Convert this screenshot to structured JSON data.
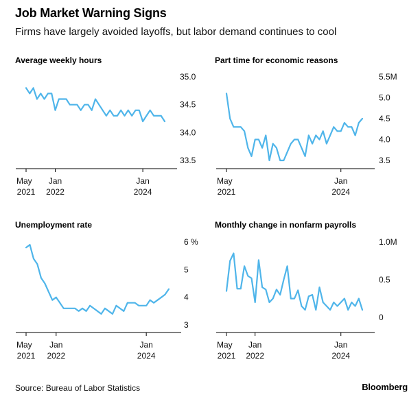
{
  "header": {
    "title": "Job Market Warning Signs",
    "subtitle": "Firms have largely avoided layoffs, but labor demand continues to cool"
  },
  "footer": {
    "source": "Source: Bureau of Labor Statistics",
    "brand": "Bloomberg"
  },
  "colors": {
    "line": "#4fb5ea",
    "axis": "#000000",
    "text": "#111111"
  },
  "chart_data": [
    {
      "type": "line",
      "title": "Average weekly hours",
      "x": [
        "2021-05",
        "2021-06",
        "2021-07",
        "2021-08",
        "2021-09",
        "2021-10",
        "2021-11",
        "2021-12",
        "2022-01",
        "2022-02",
        "2022-03",
        "2022-04",
        "2022-05",
        "2022-06",
        "2022-07",
        "2022-08",
        "2022-09",
        "2022-10",
        "2022-11",
        "2022-12",
        "2023-01",
        "2023-02",
        "2023-03",
        "2023-04",
        "2023-05",
        "2023-06",
        "2023-07",
        "2023-08",
        "2023-09",
        "2023-10",
        "2023-11",
        "2023-12",
        "2024-01",
        "2024-02",
        "2024-03",
        "2024-04",
        "2024-05",
        "2024-06",
        "2024-07"
      ],
      "values": [
        34.8,
        34.7,
        34.8,
        34.6,
        34.7,
        34.6,
        34.7,
        34.7,
        34.4,
        34.6,
        34.6,
        34.6,
        34.5,
        34.5,
        34.5,
        34.4,
        34.5,
        34.5,
        34.4,
        34.6,
        34.5,
        34.4,
        34.3,
        34.4,
        34.3,
        34.3,
        34.4,
        34.3,
        34.4,
        34.3,
        34.4,
        34.4,
        34.2,
        34.3,
        34.4,
        34.3,
        34.3,
        34.3,
        34.2
      ],
      "ylim": [
        33.5,
        35.0
      ],
      "y_ticks": [
        33.5,
        34.0,
        34.5,
        35.0
      ],
      "y_tick_labels": [
        "33.5",
        "34.0",
        "34.5",
        "35.0"
      ],
      "x_tick_labels": [
        {
          "x": "2021-05",
          "lines": [
            "May",
            "2021"
          ]
        },
        {
          "x": "2022-01",
          "lines": [
            "Jan",
            "2022"
          ]
        },
        {
          "x": "2024-01",
          "lines": [
            "Jan",
            "2024"
          ]
        }
      ]
    },
    {
      "type": "line",
      "title": "Part time for economic reasons",
      "x": [
        "2021-05",
        "2021-06",
        "2021-07",
        "2021-08",
        "2021-09",
        "2021-10",
        "2021-11",
        "2021-12",
        "2022-01",
        "2022-02",
        "2022-03",
        "2022-04",
        "2022-05",
        "2022-06",
        "2022-07",
        "2022-08",
        "2022-09",
        "2022-10",
        "2022-11",
        "2022-12",
        "2023-01",
        "2023-02",
        "2023-03",
        "2023-04",
        "2023-05",
        "2023-06",
        "2023-07",
        "2023-08",
        "2023-09",
        "2023-10",
        "2023-11",
        "2023-12",
        "2024-01",
        "2024-02",
        "2024-03",
        "2024-04",
        "2024-05",
        "2024-06",
        "2024-07"
      ],
      "values": [
        5.1,
        4.5,
        4.3,
        4.3,
        4.3,
        4.2,
        3.8,
        3.6,
        4.0,
        4.0,
        3.8,
        4.1,
        3.5,
        3.9,
        3.8,
        3.5,
        3.5,
        3.7,
        3.9,
        4.0,
        4.0,
        3.8,
        3.6,
        4.1,
        3.9,
        4.1,
        4.0,
        4.2,
        3.9,
        4.1,
        4.3,
        4.2,
        4.2,
        4.4,
        4.3,
        4.3,
        4.1,
        4.4,
        4.5
      ],
      "ylim": [
        3.5,
        5.5
      ],
      "y_ticks": [
        3.5,
        4.0,
        4.5,
        5.0,
        5.5
      ],
      "y_tick_labels": [
        "3.5",
        "4.0",
        "4.5",
        "5.0",
        "5.5M"
      ],
      "x_tick_labels": [
        {
          "x": "2021-05",
          "lines": [
            "May",
            "2021"
          ]
        },
        {
          "x": "2024-01",
          "lines": [
            "Jan",
            "2024"
          ]
        }
      ]
    },
    {
      "type": "line",
      "title": "Unemployment rate",
      "x": [
        "2021-05",
        "2021-06",
        "2021-07",
        "2021-08",
        "2021-09",
        "2021-10",
        "2021-11",
        "2021-12",
        "2022-01",
        "2022-02",
        "2022-03",
        "2022-04",
        "2022-05",
        "2022-06",
        "2022-07",
        "2022-08",
        "2022-09",
        "2022-10",
        "2022-11",
        "2022-12",
        "2023-01",
        "2023-02",
        "2023-03",
        "2023-04",
        "2023-05",
        "2023-06",
        "2023-07",
        "2023-08",
        "2023-09",
        "2023-10",
        "2023-11",
        "2023-12",
        "2024-01",
        "2024-02",
        "2024-03",
        "2024-04",
        "2024-05",
        "2024-06",
        "2024-07"
      ],
      "values": [
        5.8,
        5.9,
        5.4,
        5.2,
        4.7,
        4.5,
        4.2,
        3.9,
        4.0,
        3.8,
        3.6,
        3.6,
        3.6,
        3.6,
        3.5,
        3.6,
        3.5,
        3.7,
        3.6,
        3.5,
        3.4,
        3.6,
        3.5,
        3.4,
        3.7,
        3.6,
        3.5,
        3.8,
        3.8,
        3.8,
        3.7,
        3.7,
        3.7,
        3.9,
        3.8,
        3.9,
        4.0,
        4.1,
        4.3
      ],
      "ylim": [
        3,
        6
      ],
      "y_ticks": [
        3,
        4,
        5,
        6
      ],
      "y_tick_labels": [
        "3",
        "4",
        "5",
        "6 %"
      ],
      "x_tick_labels": [
        {
          "x": "2021-05",
          "lines": [
            "May",
            "2021"
          ]
        },
        {
          "x": "2022-01",
          "lines": [
            "Jan",
            "2022"
          ]
        },
        {
          "x": "2024-01",
          "lines": [
            "Jan",
            "2024"
          ]
        }
      ]
    },
    {
      "type": "line",
      "title": "Monthly change in nonfarm payrolls",
      "x": [
        "2021-05",
        "2021-06",
        "2021-07",
        "2021-08",
        "2021-09",
        "2021-10",
        "2021-11",
        "2021-12",
        "2022-01",
        "2022-02",
        "2022-03",
        "2022-04",
        "2022-05",
        "2022-06",
        "2022-07",
        "2022-08",
        "2022-09",
        "2022-10",
        "2022-11",
        "2022-12",
        "2023-01",
        "2023-02",
        "2023-03",
        "2023-04",
        "2023-05",
        "2023-06",
        "2023-07",
        "2023-08",
        "2023-09",
        "2023-10",
        "2023-11",
        "2023-12",
        "2024-01",
        "2024-02",
        "2024-03",
        "2024-04",
        "2024-05",
        "2024-06",
        "2024-07"
      ],
      "values": [
        0.35,
        0.75,
        0.85,
        0.38,
        0.38,
        0.68,
        0.55,
        0.52,
        0.2,
        0.76,
        0.4,
        0.37,
        0.2,
        0.25,
        0.37,
        0.3,
        0.5,
        0.68,
        0.25,
        0.25,
        0.36,
        0.15,
        0.1,
        0.28,
        0.3,
        0.1,
        0.4,
        0.2,
        0.15,
        0.1,
        0.2,
        0.15,
        0.2,
        0.25,
        0.1,
        0.2,
        0.15,
        0.25,
        0.1
      ],
      "ylim": [
        -0.1,
        1.0
      ],
      "y_ticks": [
        0,
        0.5,
        1.0
      ],
      "y_tick_labels": [
        "0",
        "0.5",
        "1.0M"
      ],
      "x_tick_labels": [
        {
          "x": "2021-05",
          "lines": [
            "May",
            "2021"
          ]
        },
        {
          "x": "2022-01",
          "lines": [
            "Jan",
            "2022"
          ]
        },
        {
          "x": "2024-01",
          "lines": [
            "Jan",
            "2024"
          ]
        }
      ]
    }
  ]
}
